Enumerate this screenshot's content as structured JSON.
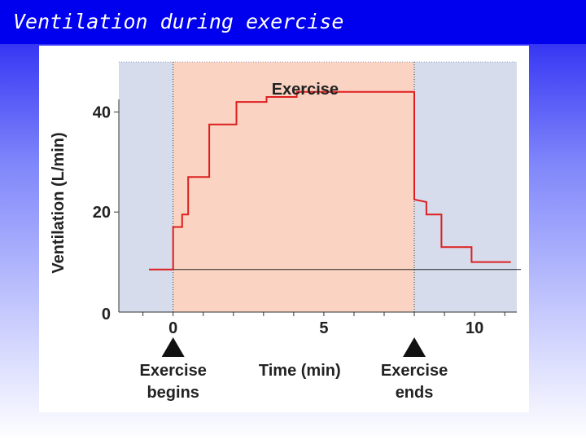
{
  "slide": {
    "title": "Ventilation during exercise"
  },
  "colors": {
    "rest_bg": "#d6dcec",
    "exercise_bg": "#fad3c2",
    "line": "#dd1f1f",
    "baseline": "#222222",
    "title_bar": "#0000ee"
  },
  "chart_data": {
    "type": "line",
    "title": "",
    "xlabel": "Time (min)",
    "ylabel": "Ventilation (L/min)",
    "xlim": [
      -1.8,
      11.4
    ],
    "ylim": [
      0,
      50
    ],
    "x_ticks": [
      0,
      5,
      10
    ],
    "y_ticks": [
      0,
      20,
      40
    ],
    "x_minor_tick_step": 1,
    "grid": false,
    "legend": "none",
    "exercise_band": {
      "start": 0,
      "end": 8,
      "label": "Exercise"
    },
    "resting_baseline": 8.5,
    "series": [
      {
        "name": "",
        "points": [
          {
            "x": -0.8,
            "y": 8.5
          },
          {
            "x": 0,
            "y": 8.5
          },
          {
            "x": 0,
            "y": 17
          },
          {
            "x": 0.3,
            "y": 17
          },
          {
            "x": 0.3,
            "y": 19.5
          },
          {
            "x": 0.5,
            "y": 19.5
          },
          {
            "x": 0.5,
            "y": 27
          },
          {
            "x": 1.2,
            "y": 27
          },
          {
            "x": 1.2,
            "y": 37.5
          },
          {
            "x": 2.1,
            "y": 37.5
          },
          {
            "x": 2.1,
            "y": 42
          },
          {
            "x": 3.1,
            "y": 42
          },
          {
            "x": 3.1,
            "y": 43
          },
          {
            "x": 4.1,
            "y": 43
          },
          {
            "x": 4.1,
            "y": 44
          },
          {
            "x": 8,
            "y": 44
          },
          {
            "x": 8,
            "y": 22.5
          },
          {
            "x": 8.4,
            "y": 22
          },
          {
            "x": 8.4,
            "y": 19.5
          },
          {
            "x": 8.9,
            "y": 19.5
          },
          {
            "x": 8.9,
            "y": 13
          },
          {
            "x": 9.9,
            "y": 13
          },
          {
            "x": 9.9,
            "y": 10
          },
          {
            "x": 11.2,
            "y": 10
          }
        ]
      }
    ],
    "annotations": [
      {
        "id": "begin",
        "x": 0,
        "line1": "Exercise",
        "line2": "begins"
      },
      {
        "id": "end",
        "x": 8,
        "line1": "Exercise",
        "line2": "ends"
      }
    ]
  }
}
